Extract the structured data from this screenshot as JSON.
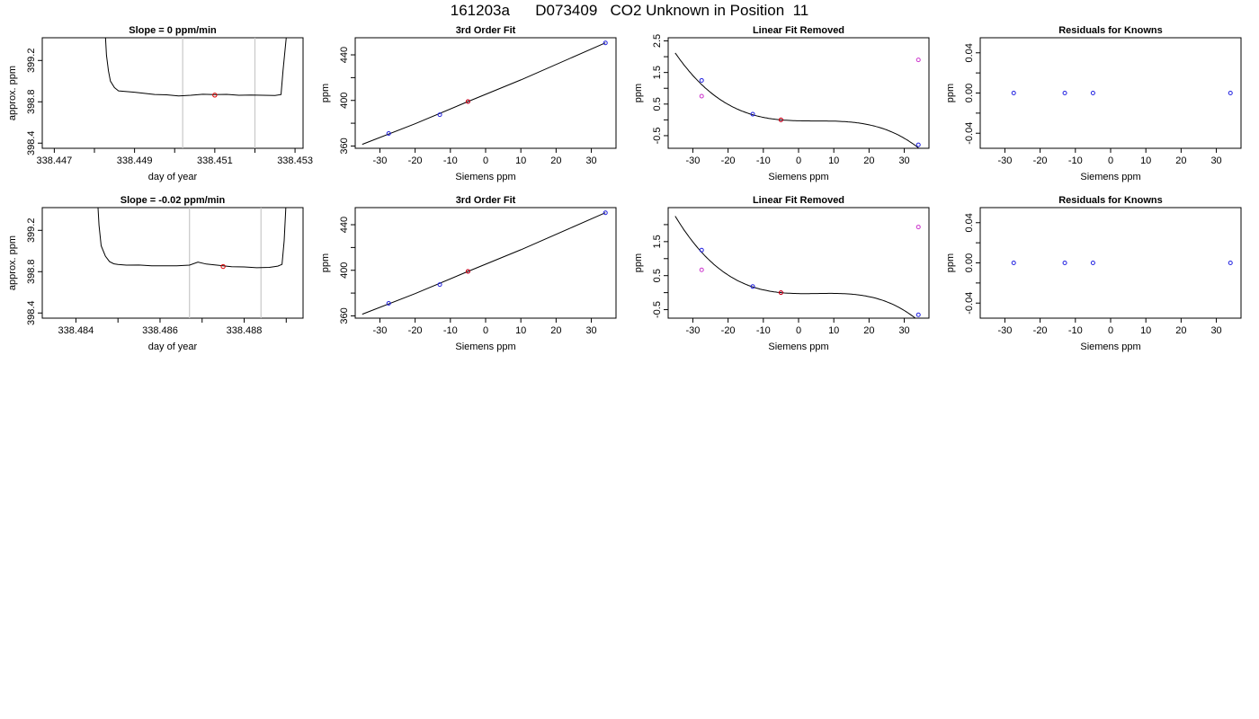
{
  "title": "161203a      D073409   CO2 Unknown in Position  11",
  "chart_data": [
    {
      "type": "line",
      "title": "Slope =  0  ppm/min",
      "xlabel": "day of year",
      "ylabel": "approx. ppm",
      "xlim": [
        338.4467,
        338.4532
      ],
      "ylim": [
        398.35,
        399.42
      ],
      "xticks": [
        "338.447",
        "338.449",
        "338.451",
        "338.453"
      ],
      "xtick_values": [
        338.447,
        338.449,
        338.451,
        338.453
      ],
      "xminor": [
        338.448,
        338.45,
        338.452
      ],
      "yticks": [
        "398.4",
        "398.8",
        "399.2"
      ],
      "ytick_values": [
        398.4,
        398.8,
        399.2
      ],
      "vlines": [
        338.4502,
        338.452
      ],
      "x": [
        338.44825,
        338.4483,
        338.44835,
        338.4484,
        338.4485,
        338.4486,
        338.4488,
        338.449,
        338.4492,
        338.4495,
        338.4498,
        338.4501,
        338.4504,
        338.4507,
        338.451,
        338.4513,
        338.4516,
        338.4519,
        338.4522,
        338.4525,
        338.45265,
        338.4527,
        338.4528
      ],
      "values": [
        399.6,
        399.25,
        399.1,
        399.0,
        398.94,
        398.91,
        398.9,
        398.89,
        398.88,
        398.87,
        398.87,
        398.86,
        398.865,
        398.87,
        398.865,
        398.87,
        398.865,
        398.87,
        398.865,
        398.86,
        398.87,
        399.1,
        399.5
      ],
      "marker": {
        "x": 338.451,
        "y": 398.865,
        "color": "#e00000"
      }
    },
    {
      "type": "scatter",
      "title": "3rd Order Fit",
      "xlabel": "Siemens ppm",
      "ylabel": "ppm",
      "xlim": [
        -37,
        37
      ],
      "ylim": [
        358,
        455
      ],
      "xticks": [
        "-30",
        "-20",
        "-10",
        "0",
        "10",
        "20",
        "30"
      ],
      "xtick_values": [
        -30,
        -20,
        -10,
        0,
        10,
        20,
        30
      ],
      "yticks": [
        "360",
        "400",
        "440"
      ],
      "ytick_values": [
        360,
        400,
        440
      ],
      "yminor": [
        380,
        420
      ],
      "points": [
        [
          -27.5,
          371.0
        ],
        [
          -13.0,
          387.5
        ],
        [
          -5.0,
          399.0
        ],
        [
          34.0,
          450.5
        ]
      ],
      "unknown": [
        -5.0,
        399.0
      ],
      "fit": [
        [
          -35.0,
          361.5
        ],
        [
          -20.0,
          379.5
        ],
        [
          -5.0,
          399.0
        ],
        [
          10.0,
          418.0
        ],
        [
          34.0,
          450.5
        ]
      ]
    },
    {
      "type": "scatter",
      "title": "Linear Fit Removed",
      "xlabel": "Siemens ppm",
      "ylabel": "ppm",
      "xlim": [
        -37,
        37
      ],
      "ylim": [
        -0.9,
        2.6
      ],
      "xticks": [
        "-30",
        "-20",
        "-10",
        "0",
        "10",
        "20",
        "30"
      ],
      "xtick_values": [
        -30,
        -20,
        -10,
        0,
        10,
        20,
        30
      ],
      "yticks": [
        "-0.5",
        "0.5",
        "1.5",
        "2.5"
      ],
      "ytick_values": [
        -0.5,
        0.5,
        1.5,
        2.5
      ],
      "yminor": [
        0.0,
        1.0,
        2.0
      ],
      "points": [
        [
          -27.5,
          1.25
        ],
        [
          -13.0,
          0.18
        ],
        [
          -5.0,
          0.0
        ],
        [
          34.0,
          -0.79
        ]
      ],
      "unknown": [
        -5.0,
        0.0
      ],
      "raw_points": [
        [
          -27.5,
          0.75
        ],
        [
          34.0,
          1.9
        ]
      ],
      "curve_coef": {
        "x0": -5.0,
        "a": -0.01,
        "b": 0.001,
        "c": -3.4e-05
      },
      "curve_xrange": [
        -35.0,
        34.0
      ]
    },
    {
      "type": "scatter",
      "title": "Residuals for Knowns",
      "xlabel": "Siemens ppm",
      "ylabel": "ppm",
      "xlim": [
        -37,
        37
      ],
      "ylim": [
        -0.055,
        0.055
      ],
      "xticks": [
        "-30",
        "-20",
        "-10",
        "0",
        "10",
        "20",
        "30"
      ],
      "xtick_values": [
        -30,
        -20,
        -10,
        0,
        10,
        20,
        30
      ],
      "yticks": [
        "-0.04",
        "0.00",
        "0.04"
      ],
      "ytick_values": [
        -0.04,
        0.0,
        0.04
      ],
      "yminor": [
        -0.02,
        0.02
      ],
      "points": [
        [
          -27.5,
          0.0
        ],
        [
          -13.0,
          0.0
        ],
        [
          -5.0,
          0.0
        ],
        [
          34.0,
          0.0
        ]
      ]
    },
    {
      "type": "line",
      "title": "Slope =  -0.02  ppm/min",
      "xlabel": "day of year",
      "ylabel": "approx. ppm",
      "xlim": [
        338.4832,
        338.4894
      ],
      "ylim": [
        398.35,
        399.42
      ],
      "xticks": [
        "338.484",
        "338.486",
        "338.488"
      ],
      "xtick_values": [
        338.484,
        338.486,
        338.488
      ],
      "xminor": [
        338.485,
        338.487,
        338.489
      ],
      "yticks": [
        "398.4",
        "398.8",
        "399.2"
      ],
      "ytick_values": [
        398.4,
        398.8,
        399.2
      ],
      "vlines": [
        338.4867,
        338.4884
      ],
      "x": [
        338.4845,
        338.48455,
        338.4846,
        338.4847,
        338.4848,
        338.4849,
        338.485,
        338.4852,
        338.4855,
        338.4858,
        338.4861,
        338.4864,
        338.4867,
        338.4869,
        338.4871,
        338.4874,
        338.4877,
        338.488,
        338.4883,
        338.4886,
        338.4888,
        338.4889,
        338.48895,
        338.489
      ],
      "values": [
        399.6,
        399.25,
        399.05,
        398.95,
        398.9,
        398.88,
        398.87,
        398.86,
        398.86,
        398.855,
        398.86,
        398.86,
        398.865,
        398.89,
        398.87,
        398.86,
        398.85,
        398.85,
        398.84,
        398.84,
        398.85,
        398.87,
        399.1,
        399.5
      ],
      "marker": {
        "x": 338.4875,
        "y": 398.85,
        "color": "#e00000"
      }
    },
    {
      "type": "scatter",
      "title": "3rd Order Fit",
      "xlabel": "Siemens ppm",
      "ylabel": "ppm",
      "xlim": [
        -37,
        37
      ],
      "ylim": [
        358,
        455
      ],
      "xticks": [
        "-30",
        "-20",
        "-10",
        "0",
        "10",
        "20",
        "30"
      ],
      "xtick_values": [
        -30,
        -20,
        -10,
        0,
        10,
        20,
        30
      ],
      "yticks": [
        "360",
        "400",
        "440"
      ],
      "ytick_values": [
        360,
        400,
        440
      ],
      "yminor": [
        380,
        420
      ],
      "points": [
        [
          -27.5,
          371.0
        ],
        [
          -13.0,
          387.5
        ],
        [
          -5.0,
          399.0
        ],
        [
          34.0,
          450.5
        ]
      ],
      "unknown": [
        -5.0,
        399.0
      ],
      "fit": [
        [
          -35.0,
          361.5
        ],
        [
          -20.0,
          379.5
        ],
        [
          -5.0,
          399.0
        ],
        [
          10.0,
          418.0
        ],
        [
          34.0,
          450.5
        ]
      ]
    },
    {
      "type": "scatter",
      "title": "Linear Fit Removed",
      "xlabel": "Siemens ppm",
      "ylabel": "ppm",
      "xlim": [
        -37,
        37
      ],
      "ylim": [
        -0.75,
        2.5
      ],
      "xticks": [
        "-30",
        "-20",
        "-10",
        "0",
        "10",
        "20",
        "30"
      ],
      "xtick_values": [
        -30,
        -20,
        -10,
        0,
        10,
        20,
        30
      ],
      "yticks": [
        "-0.5",
        "0.5",
        "1.5"
      ],
      "ytick_values": [
        -0.5,
        0.5,
        1.5
      ],
      "yminor": [
        0.0,
        1.0,
        2.0
      ],
      "points": [
        [
          -27.5,
          1.25
        ],
        [
          -13.0,
          0.18
        ],
        [
          -5.0,
          0.0
        ],
        [
          34.0,
          -0.65
        ]
      ],
      "unknown": [
        -5.0,
        0.0
      ],
      "raw_points": [
        [
          -27.5,
          0.67
        ],
        [
          34.0,
          1.93
        ]
      ],
      "curve_coef": {
        "x0": -5.0,
        "a": -0.01,
        "b": 0.0011,
        "c": -3.55e-05
      },
      "curve_xrange": [
        -35.0,
        34.0
      ]
    },
    {
      "type": "scatter",
      "title": "Residuals for Knowns",
      "xlabel": "Siemens ppm",
      "ylabel": "ppm",
      "xlim": [
        -37,
        37
      ],
      "ylim": [
        -0.055,
        0.055
      ],
      "xticks": [
        "-30",
        "-20",
        "-10",
        "0",
        "10",
        "20",
        "30"
      ],
      "xtick_values": [
        -30,
        -20,
        -10,
        0,
        10,
        20,
        30
      ],
      "yticks": [
        "-0.04",
        "0.00",
        "0.04"
      ],
      "ytick_values": [
        -0.04,
        0.0,
        0.04
      ],
      "yminor": [
        -0.02,
        0.02
      ],
      "points": [
        [
          -27.5,
          0.0
        ],
        [
          -13.0,
          0.0
        ],
        [
          -5.0,
          0.0
        ],
        [
          34.0,
          0.0
        ]
      ]
    }
  ],
  "colors": {
    "known": "#2020e0",
    "unknown": "#e00000",
    "raw": "#cc33cc",
    "line": "#000000",
    "vline": "#c8c8c8"
  }
}
